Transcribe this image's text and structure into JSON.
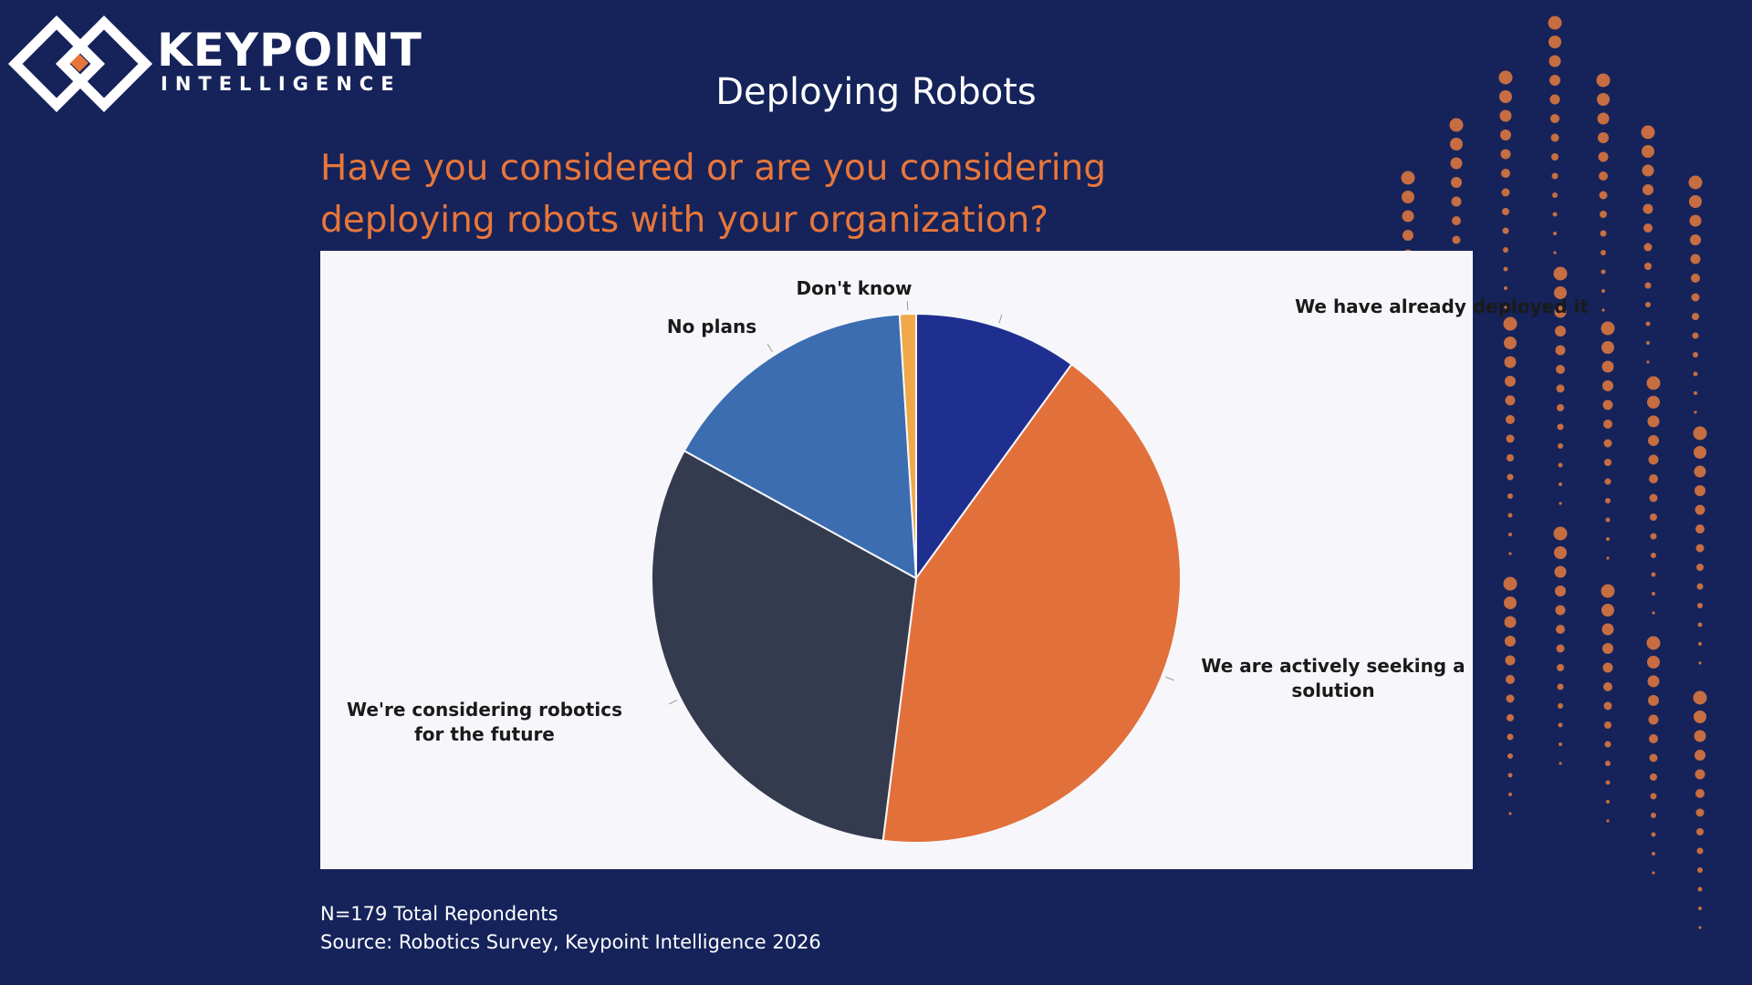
{
  "logo": {
    "name": "KEYPOINT",
    "subname": "INTELLIGENCE"
  },
  "chart_data": {
    "type": "pie",
    "title": "Deploying Robots",
    "subtitle": "Have you considered or are you considering deploying robots with your organization?",
    "categories": [
      "We have already deployed it",
      "We are actively seeking a solution",
      "We're considering robotics for the future",
      "No plans",
      "Don't know"
    ],
    "values": [
      10,
      42,
      31,
      16,
      1
    ],
    "colors": [
      "#1f2f8f",
      "#e2703a",
      "#353b4e",
      "#3b6db0",
      "#f0a848"
    ],
    "notes": [
      "N=179 Total Repondents",
      "Source: Robotics Survey, Keypoint Intelligence 2026"
    ]
  }
}
